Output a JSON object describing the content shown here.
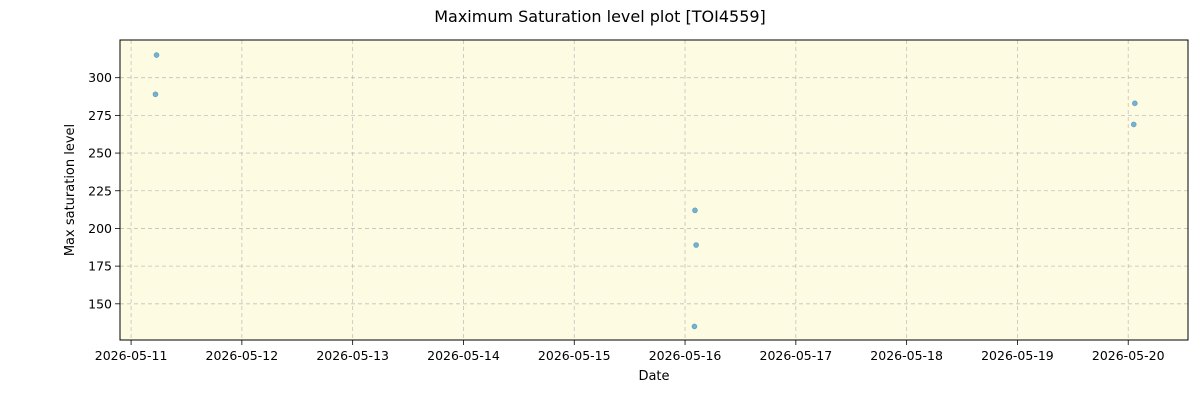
{
  "chart_data": {
    "type": "scatter",
    "title": "Maximum Saturation level plot [TOI4559]",
    "xlabel": "Date",
    "ylabel": "Max saturation level",
    "x_ticks": [
      "2026-05-11",
      "2026-05-12",
      "2026-05-13",
      "2026-05-14",
      "2026-05-15",
      "2026-05-16",
      "2026-05-17",
      "2026-05-18",
      "2026-05-19",
      "2026-05-20"
    ],
    "y_ticks": [
      150,
      175,
      200,
      225,
      250,
      275,
      300
    ],
    "xlim": [
      "2026-05-10T21:36",
      "2026-05-20T12:57"
    ],
    "ylim": [
      126,
      325
    ],
    "grid": true,
    "background_color": "#fdfbe2",
    "point_color": "#5fa3c7",
    "series": [
      {
        "points": [
          {
            "x": "2026-05-11T05:31",
            "y": 315
          },
          {
            "x": "2026-05-11T05:17",
            "y": 289
          },
          {
            "x": "2026-05-16T02:09",
            "y": 212
          },
          {
            "x": "2026-05-16T02:24",
            "y": 189
          },
          {
            "x": "2026-05-16T02:02",
            "y": 135
          },
          {
            "x": "2026-05-20T01:26",
            "y": 283
          },
          {
            "x": "2026-05-20T01:12",
            "y": 269
          }
        ]
      }
    ]
  }
}
